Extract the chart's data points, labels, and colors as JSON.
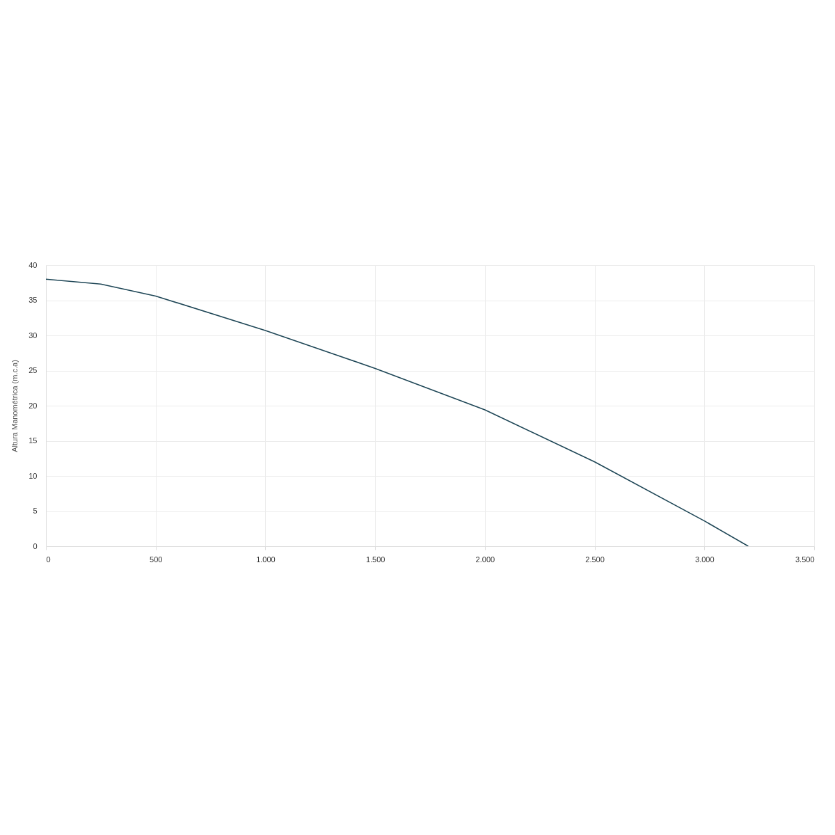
{
  "chart_data": {
    "type": "line",
    "ylabel": "Altura Manométrica (m.c.a)",
    "x": [
      0,
      250,
      500,
      1000,
      1500,
      2000,
      2500,
      3000,
      3200
    ],
    "series": [
      {
        "color": "#1e4656",
        "values": [
          38.0,
          37.3,
          35.6,
          30.7,
          25.3,
          19.4,
          12.0,
          3.6,
          0
        ]
      }
    ],
    "xlim": [
      0,
      3500
    ],
    "xticks": [
      0,
      500,
      {
        "value": 1000,
        "label": "1.000"
      },
      {
        "value": 1500,
        "label": "1.500"
      },
      {
        "value": 2000,
        "label": "2.000"
      },
      {
        "value": 2500,
        "label": "2.500"
      },
      {
        "value": 3000,
        "label": "3.000"
      },
      {
        "value": 3500,
        "label": "3.500"
      }
    ],
    "ylim": [
      0,
      40
    ],
    "yticks": [
      0,
      5,
      10,
      15,
      20,
      25,
      30,
      35,
      40
    ],
    "grid": true,
    "line_style": "solid"
  }
}
